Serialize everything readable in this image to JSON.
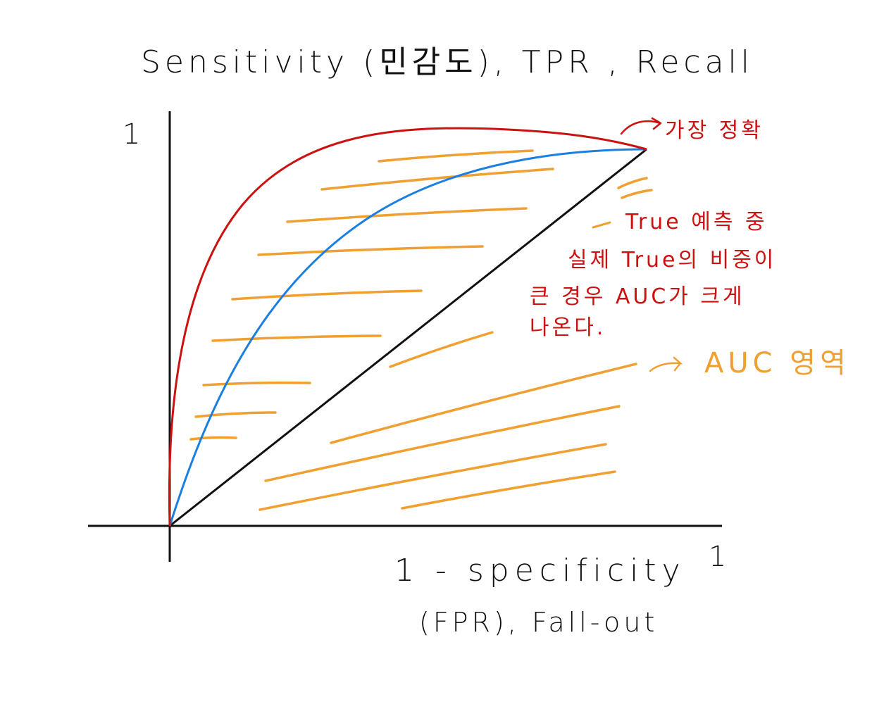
{
  "chart_data": {
    "type": "line",
    "title": "",
    "ylabel": "Sensitivity (민감도), TPR , Recall",
    "xlabel_line1": "1 - specificity",
    "xlabel_line2": "(FPR), Fall-out",
    "x_tick_max": "1",
    "y_tick_max": "1",
    "xlim": [
      0,
      1
    ],
    "ylim": [
      0,
      1
    ],
    "grid": false,
    "series": [
      {
        "color": "#cc1111",
        "kind": "most-accurate curve"
      },
      {
        "color": "#1a7fe0",
        "kind": "roc curve"
      },
      {
        "color": "#111111",
        "kind": "random diagonal"
      }
    ],
    "shaded_area_color": "#f0a030",
    "annotations": {
      "most_accurate": "가장 정확",
      "explanation": [
        "True 예측 중",
        "실제 True의 비중이",
        "큰 경우 AUC가 크게",
        "나온다."
      ],
      "auc_area": "AUC 영역"
    }
  }
}
